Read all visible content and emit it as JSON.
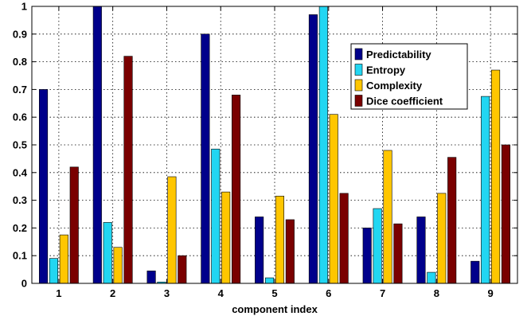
{
  "chart_data": {
    "type": "bar",
    "title": "",
    "xlabel": "component index",
    "ylabel": "",
    "categories": [
      "1",
      "2",
      "3",
      "4",
      "5",
      "6",
      "7",
      "8",
      "9"
    ],
    "ylim": [
      0,
      1
    ],
    "yticks": [
      "0",
      "0.1",
      "0.2",
      "0.3",
      "0.4",
      "0.5",
      "0.6",
      "0.7",
      "0.8",
      "0.9",
      "1"
    ],
    "grid": true,
    "legend_position": "top-right",
    "series": [
      {
        "name": "Predictability",
        "color": "#00008b",
        "values": [
          0.7,
          1.0,
          0.045,
          0.9,
          0.24,
          0.97,
          0.2,
          0.24,
          0.08
        ]
      },
      {
        "name": "Entropy",
        "color": "#22d6f2",
        "values": [
          0.09,
          0.22,
          0.005,
          0.485,
          0.02,
          1.0,
          0.27,
          0.04,
          0.675
        ]
      },
      {
        "name": "Complexity",
        "color": "#ffc600",
        "values": [
          0.175,
          0.13,
          0.385,
          0.33,
          0.315,
          0.61,
          0.48,
          0.325,
          0.77
        ]
      },
      {
        "name": "Dice coefficient",
        "color": "#7a0000",
        "values": [
          0.42,
          0.82,
          0.1,
          0.68,
          0.23,
          0.325,
          0.215,
          0.455,
          0.5
        ]
      }
    ]
  }
}
